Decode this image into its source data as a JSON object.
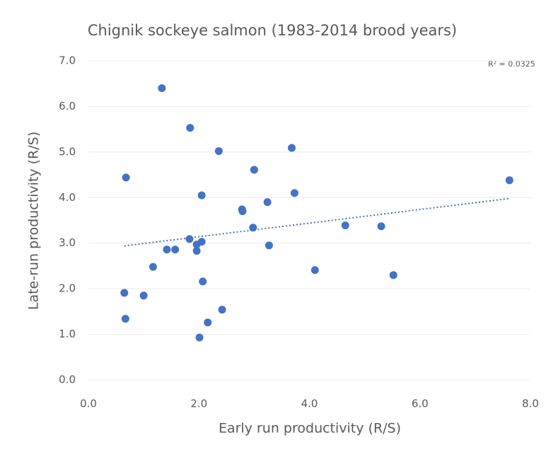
{
  "chart_data": {
    "type": "scatter",
    "title": "Chignik sockeye salmon (1983-2014 brood years)",
    "x_label": "Early run productivity (R/S)",
    "y_label": "Late-run productivity (R/S)",
    "annotation": "R² = 0.0325",
    "color": "#4472c4",
    "grid": true,
    "xlim": [
      0,
      8
    ],
    "ylim": [
      0,
      7
    ],
    "xticks": [
      {
        "value": 0,
        "label": "0.0"
      },
      {
        "value": 2,
        "label": "2.0"
      },
      {
        "value": 4,
        "label": "4.0"
      },
      {
        "value": 6,
        "label": "6.0"
      },
      {
        "value": 8,
        "label": "8.0"
      }
    ],
    "yticks": [
      {
        "value": 0,
        "label": "0.0"
      },
      {
        "value": 1,
        "label": "1.0"
      },
      {
        "value": 2,
        "label": "2.0"
      },
      {
        "value": 3,
        "label": "3.0"
      },
      {
        "value": 4,
        "label": "4.0"
      },
      {
        "value": 5,
        "label": "5.0"
      },
      {
        "value": 6,
        "label": "6.0"
      },
      {
        "value": 7,
        "label": "7.0"
      }
    ],
    "x": [
      1.33,
      1.84,
      2.36,
      3.68,
      3.0,
      0.68,
      2.05,
      3.73,
      7.62,
      3.24,
      2.78,
      2.79,
      2.98,
      4.65,
      5.3,
      3.27,
      1.83,
      1.96,
      2.05,
      1.42,
      1.57,
      1.96,
      1.17,
      4.1,
      5.52,
      2.07,
      0.65,
      1.0,
      2.42,
      0.67,
      2.16,
      2.01
    ],
    "values": [
      6.4,
      5.53,
      5.02,
      5.09,
      4.61,
      4.44,
      4.05,
      4.1,
      4.38,
      3.9,
      3.74,
      3.7,
      3.34,
      3.39,
      3.37,
      2.95,
      3.09,
      2.97,
      3.03,
      2.86,
      2.86,
      2.83,
      2.48,
      2.41,
      2.3,
      2.16,
      1.91,
      1.85,
      1.54,
      1.34,
      1.26,
      0.93
    ],
    "trendline": {
      "x": [
        0.65,
        7.62
      ],
      "values": [
        2.94,
        3.98
      ],
      "color": "#4472c4"
    }
  }
}
